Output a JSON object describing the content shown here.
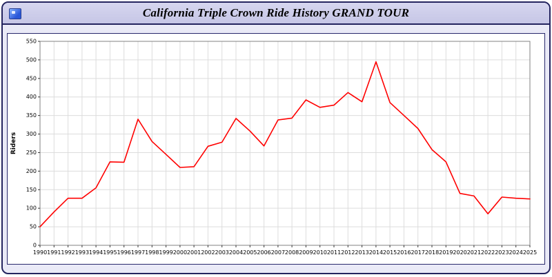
{
  "window": {
    "title": "California Triple Crown Ride History GRAND TOUR"
  },
  "icons": {
    "app_icon": "window-app-icon"
  },
  "colors": {
    "line": "#ff0000",
    "grid": "#dcdcdc",
    "frame": "#808080",
    "header_bg": "#cccce8",
    "page_bg": "#eaeaf7",
    "border": "#23235e"
  },
  "chart_data": {
    "type": "line",
    "title": "California Triple Crown Ride History GRAND TOUR",
    "xlabel": "",
    "ylabel": "Riders",
    "ylim": [
      0,
      550
    ],
    "ytick_step": 50,
    "grid": true,
    "legend": "none",
    "line_color": "#ff0000",
    "x": [
      1990,
      1991,
      1992,
      1993,
      1994,
      1995,
      1996,
      1997,
      1998,
      1999,
      2000,
      2001,
      2002,
      2003,
      2004,
      2005,
      2006,
      2007,
      2008,
      2009,
      2010,
      2011,
      2012,
      2013,
      2014,
      2015,
      2016,
      2017,
      2018,
      2019,
      2020,
      2021,
      2022,
      2023,
      2024,
      2025
    ],
    "series": [
      {
        "name": "Riders",
        "values": [
          50,
          90,
          127,
          127,
          155,
          225,
          224,
          340,
          280,
          245,
          210,
          212,
          267,
          278,
          342,
          308,
          268,
          338,
          343,
          392,
          372,
          378,
          412,
          387,
          495,
          385,
          350,
          315,
          258,
          225,
          140,
          133,
          85,
          130,
          127,
          125
        ]
      }
    ]
  }
}
